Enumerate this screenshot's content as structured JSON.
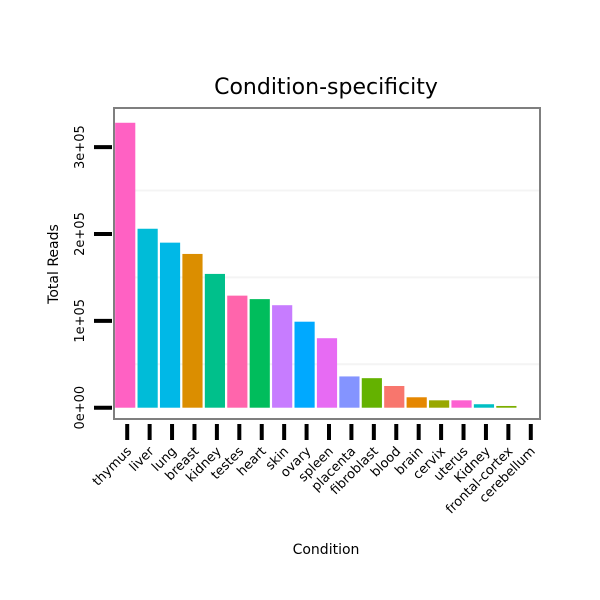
{
  "chart_data": {
    "type": "bar",
    "title": "Condition-specificity",
    "xlabel": "Condition",
    "ylabel": "Total Reads",
    "ylim": [
      -13000,
      345000
    ],
    "yticks": [
      0,
      100000,
      200000,
      300000
    ],
    "ytick_labels": [
      "0e+00",
      "1e+05",
      "2e+05",
      "3e+05"
    ],
    "categories": [
      "thymus",
      "liver",
      "lung",
      "breast",
      "kidney",
      "testes",
      "heart",
      "skin",
      "ovary",
      "spleen",
      "placenta",
      "fibroblast",
      "blood",
      "brain",
      "cervix",
      "uterus",
      "Kidney",
      "frontal-cortex",
      "cerebellum"
    ],
    "values": [
      328000,
      206000,
      190000,
      177000,
      154000,
      129000,
      125000,
      118000,
      99000,
      80000,
      36000,
      34000,
      25000,
      12000,
      8500,
      8500,
      4000,
      2000,
      0
    ],
    "colors": [
      "#FF61C3",
      "#00BCD8",
      "#00B8E7",
      "#DB8E00",
      "#00C08B",
      "#FF65AC",
      "#00BD5C",
      "#C77CFF",
      "#00A9FF",
      "#E76BF3",
      "#8494FF",
      "#64B200",
      "#F8766D",
      "#E58700",
      "#99A800",
      "#FD61D1",
      "#00BFC4",
      "#7CAE00",
      "#00BA38"
    ]
  }
}
